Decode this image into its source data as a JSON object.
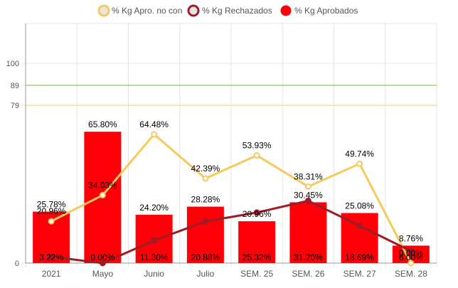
{
  "chart_data": {
    "type": "bar",
    "categories": [
      "2021",
      "Mayo",
      "Junio",
      "Julio",
      "SEM. 25",
      "SEM. 26",
      "SEM. 27",
      "SEM. 28"
    ],
    "y_ticks": [
      0,
      79,
      89,
      100
    ],
    "ylim": [
      0,
      120
    ],
    "grid": true,
    "legend_position": "top",
    "reference_lines": [
      {
        "value": 89,
        "color": "#7cb342"
      },
      {
        "value": 79,
        "color": "#f2d675"
      }
    ],
    "series": [
      {
        "name": "% Kg Apro. no con",
        "kind": "line",
        "color": "#f7c85c",
        "values": [
          20.96,
          34.03,
          64.48,
          42.39,
          53.93,
          38.31,
          49.74,
          0.0
        ],
        "labels": [
          "20.96%",
          "34.03%",
          "64.48%",
          "42.39%",
          "53.93%",
          "38.31%",
          "49.74%",
          "0.00%"
        ]
      },
      {
        "name": "% Kg Rechazados",
        "kind": "line",
        "color": "#a01c25",
        "values": [
          3.22,
          0.0,
          11.3,
          20.88,
          25.32,
          31.2,
          18.69,
          6.0
        ],
        "labels": [
          "3.22%",
          "0.00%",
          "11.30%",
          "20.88%",
          "25.32%",
          "31.20%",
          "18.69%",
          "6.00%"
        ]
      },
      {
        "name": "% Kg Aprobados",
        "kind": "bar",
        "color": "#ff0008",
        "values": [
          25.78,
          65.8,
          24.2,
          28.28,
          20.96,
          30.45,
          25.08,
          8.76
        ],
        "labels": [
          "25.78%",
          "65.80%",
          "24.20%",
          "28.28%",
          "20.96%",
          "30.45%",
          "25.08%",
          "8.76%"
        ]
      }
    ]
  }
}
